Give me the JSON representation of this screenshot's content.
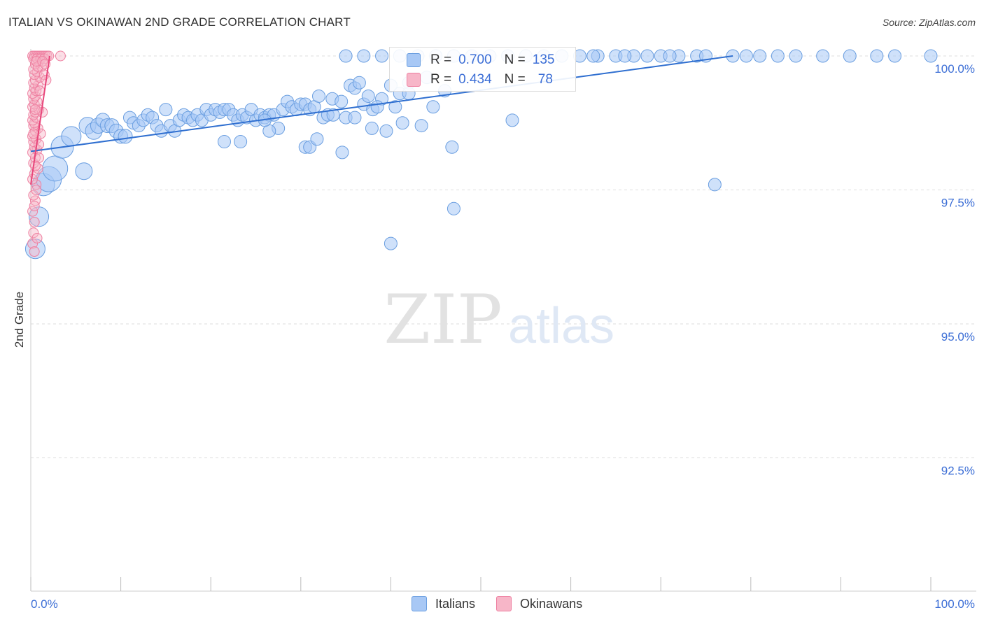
{
  "title": "ITALIAN VS OKINAWAN 2ND GRADE CORRELATION CHART",
  "source": "Source: ZipAtlas.com",
  "watermark": {
    "zip": "ZIP",
    "atlas": "atlas"
  },
  "colors": {
    "blue_fill": "#a8c8f5",
    "blue_stroke": "#6a9ee0",
    "blue_line": "#2f6fd0",
    "pink_fill": "#f7b6c8",
    "pink_stroke": "#ee7fa0",
    "pink_line": "#e8457a",
    "axis_text": "#3d6fd6",
    "grid": "#dddddd"
  },
  "legend": {
    "rows": [
      {
        "r_label": "R =",
        "r_value": "0.700",
        "n_label": "N =",
        "n_value": "135"
      },
      {
        "r_label": "R =",
        "r_value": "0.434",
        "n_label": "N =",
        "n_value": "78"
      }
    ]
  },
  "bottom_legend": {
    "italians": "Italians",
    "okinawans": "Okinawans"
  },
  "chart_data": {
    "type": "scatter",
    "title": "ITALIAN VS OKINAWAN 2ND GRADE CORRELATION CHART",
    "xlabel": "",
    "ylabel": "2nd Grade",
    "xlim": [
      0,
      100
    ],
    "ylim": [
      90.2,
      100.2
    ],
    "x_tick_labels": [
      "0.0%",
      "100.0%"
    ],
    "y_ticks": [
      92.5,
      95.0,
      97.5,
      100.0
    ],
    "y_tick_labels": [
      "92.5%",
      "95.0%",
      "97.5%",
      "100.0%"
    ],
    "series": [
      {
        "name": "Italians",
        "r": 0.7,
        "n": 135,
        "trend": {
          "x0": 0,
          "y0": 98.22,
          "x1": 78,
          "y1": 100.0
        },
        "points": [
          [
            0.5,
            96.4,
            14
          ],
          [
            0.9,
            97.0,
            14
          ],
          [
            1.4,
            97.6,
            16
          ],
          [
            2.0,
            97.7,
            18
          ],
          [
            2.7,
            97.9,
            18
          ],
          [
            3.5,
            98.3,
            16
          ],
          [
            4.5,
            98.5,
            14
          ],
          [
            5.9,
            97.85,
            12
          ],
          [
            6.3,
            98.7,
            12
          ],
          [
            7.0,
            98.6,
            12
          ],
          [
            7.5,
            98.7,
            11
          ],
          [
            8.0,
            98.8,
            10
          ],
          [
            8.5,
            98.7,
            10
          ],
          [
            9.0,
            98.7,
            10
          ],
          [
            9.5,
            98.6,
            10
          ],
          [
            10.0,
            98.5,
            10
          ],
          [
            10.5,
            98.5,
            10
          ],
          [
            11.0,
            98.85,
            9
          ],
          [
            11.4,
            98.75,
            9
          ],
          [
            12.0,
            98.7,
            9
          ],
          [
            12.5,
            98.8,
            9
          ],
          [
            13.0,
            98.9,
            9
          ],
          [
            13.5,
            98.85,
            9
          ],
          [
            14.0,
            98.7,
            9
          ],
          [
            14.5,
            98.6,
            9
          ],
          [
            15.0,
            99.0,
            9
          ],
          [
            15.5,
            98.7,
            9
          ],
          [
            16.0,
            98.6,
            9
          ],
          [
            16.5,
            98.8,
            9
          ],
          [
            17.0,
            98.9,
            9
          ],
          [
            17.5,
            98.85,
            9
          ],
          [
            18.0,
            98.8,
            9
          ],
          [
            18.5,
            98.9,
            9
          ],
          [
            19.0,
            98.8,
            9
          ],
          [
            19.5,
            99.0,
            9
          ],
          [
            20.0,
            98.9,
            9
          ],
          [
            20.5,
            99.0,
            9
          ],
          [
            21.0,
            98.95,
            9
          ],
          [
            21.5,
            99.0,
            9
          ],
          [
            22.0,
            99.0,
            9
          ],
          [
            22.5,
            98.9,
            9
          ],
          [
            23.0,
            98.8,
            9
          ],
          [
            23.5,
            98.9,
            9
          ],
          [
            24.0,
            98.85,
            9
          ],
          [
            24.5,
            99.0,
            9
          ],
          [
            25.0,
            98.8,
            9
          ],
          [
            25.5,
            98.9,
            9
          ],
          [
            26.0,
            98.85,
            9
          ],
          [
            26.5,
            98.9,
            9
          ],
          [
            27.0,
            98.9,
            9
          ],
          [
            27.5,
            98.65,
            9
          ],
          [
            28.0,
            99.0,
            9
          ],
          [
            28.5,
            99.15,
            9
          ],
          [
            29.0,
            99.05,
            9
          ],
          [
            29.5,
            99.0,
            9
          ],
          [
            30.0,
            99.1,
            9
          ],
          [
            30.5,
            99.1,
            9
          ],
          [
            31.0,
            99.0,
            9
          ],
          [
            31.5,
            99.05,
            9
          ],
          [
            32.0,
            99.25,
            9
          ],
          [
            32.5,
            98.85,
            9
          ],
          [
            33.0,
            98.9,
            9
          ],
          [
            33.5,
            99.2,
            9
          ],
          [
            34.5,
            99.15,
            9
          ],
          [
            35.0,
            98.85,
            9
          ],
          [
            35.5,
            99.45,
            9
          ],
          [
            36.0,
            99.4,
            9
          ],
          [
            36.5,
            99.5,
            9
          ],
          [
            37.0,
            99.1,
            9
          ],
          [
            37.5,
            99.25,
            9
          ],
          [
            38.0,
            99.0,
            9
          ],
          [
            39.0,
            99.2,
            9
          ],
          [
            40.0,
            99.45,
            9
          ],
          [
            41.0,
            99.3,
            9
          ],
          [
            42.0,
            99.5,
            9
          ],
          [
            44.0,
            99.6,
            9
          ],
          [
            46.0,
            99.35,
            9
          ],
          [
            26.5,
            98.6,
            9
          ],
          [
            30.5,
            98.3,
            9
          ],
          [
            31.0,
            98.3,
            9
          ],
          [
            31.8,
            98.45,
            9
          ],
          [
            34.6,
            98.2,
            9
          ],
          [
            21.5,
            98.4,
            9
          ],
          [
            23.3,
            98.4,
            9
          ],
          [
            26.0,
            98.8,
            9
          ],
          [
            37.9,
            98.65,
            9
          ],
          [
            39.5,
            98.6,
            9
          ],
          [
            41.3,
            98.75,
            9
          ],
          [
            43.4,
            98.7,
            9
          ],
          [
            46.8,
            98.3,
            9
          ],
          [
            47.0,
            97.15,
            9
          ],
          [
            53.5,
            98.8,
            9
          ],
          [
            40.0,
            96.5,
            9
          ],
          [
            76.0,
            97.6,
            9
          ],
          [
            33.6,
            98.9,
            9
          ],
          [
            36.0,
            98.85,
            9
          ],
          [
            38.5,
            99.05,
            9
          ],
          [
            40.5,
            99.05,
            9
          ],
          [
            42.0,
            99.3,
            9
          ],
          [
            44.7,
            99.05,
            9
          ],
          [
            35.0,
            100.0,
            9
          ],
          [
            37.0,
            100.0,
            9
          ],
          [
            39.0,
            100.0,
            9
          ],
          [
            41.0,
            100.0,
            9
          ],
          [
            43.0,
            100.0,
            9
          ],
          [
            45.0,
            100.0,
            9
          ],
          [
            47.0,
            100.0,
            9
          ],
          [
            49.0,
            100.0,
            9
          ],
          [
            51.0,
            100.0,
            9
          ],
          [
            53.0,
            100.0,
            9
          ],
          [
            55.0,
            100.0,
            9
          ],
          [
            57.0,
            100.0,
            9
          ],
          [
            59.0,
            100.0,
            9
          ],
          [
            61.0,
            100.0,
            9
          ],
          [
            63.0,
            100.0,
            9
          ],
          [
            65.0,
            100.0,
            9
          ],
          [
            67.0,
            100.0,
            9
          ],
          [
            70.0,
            100.0,
            9
          ],
          [
            72.0,
            100.0,
            9
          ],
          [
            74.0,
            100.0,
            9
          ],
          [
            78.0,
            100.0,
            9
          ],
          [
            81.0,
            100.0,
            9
          ],
          [
            83.0,
            100.0,
            9
          ],
          [
            85.0,
            100.0,
            9
          ],
          [
            88.0,
            100.0,
            9
          ],
          [
            91.0,
            100.0,
            9
          ],
          [
            94.0,
            100.0,
            9
          ],
          [
            96.0,
            100.0,
            9
          ],
          [
            100.0,
            100.0,
            9
          ],
          [
            62.5,
            100.0,
            9
          ],
          [
            66.0,
            100.0,
            9
          ],
          [
            68.5,
            100.0,
            9
          ],
          [
            71.0,
            100.0,
            9
          ],
          [
            75.0,
            100.0,
            9
          ],
          [
            79.5,
            100.0,
            9
          ]
        ]
      },
      {
        "name": "Okinawans",
        "r": 0.434,
        "n": 78,
        "trend": {
          "x0": 0,
          "y0": 97.6,
          "x1": 2.1,
          "y1": 100.0
        },
        "points": [
          [
            0.2,
            96.5
          ],
          [
            0.3,
            96.7
          ],
          [
            0.4,
            96.9
          ],
          [
            0.2,
            97.1
          ],
          [
            0.5,
            97.3
          ],
          [
            0.3,
            97.4
          ],
          [
            0.6,
            97.6
          ],
          [
            0.2,
            97.7
          ],
          [
            0.4,
            97.8
          ],
          [
            0.8,
            97.9
          ],
          [
            0.3,
            98.0
          ],
          [
            0.5,
            98.1
          ],
          [
            0.2,
            98.2
          ],
          [
            0.7,
            98.25
          ],
          [
            0.4,
            98.3
          ],
          [
            0.3,
            98.4
          ],
          [
            0.6,
            98.45
          ],
          [
            0.2,
            98.5
          ],
          [
            0.5,
            98.6
          ],
          [
            0.8,
            98.65
          ],
          [
            0.3,
            98.7
          ],
          [
            0.4,
            98.75
          ],
          [
            0.2,
            98.8
          ],
          [
            0.6,
            98.85
          ],
          [
            0.3,
            98.9
          ],
          [
            0.5,
            98.95
          ],
          [
            0.9,
            99.0
          ],
          [
            0.2,
            99.05
          ],
          [
            0.4,
            99.1
          ],
          [
            0.7,
            99.15
          ],
          [
            0.3,
            99.2
          ],
          [
            0.5,
            99.25
          ],
          [
            0.2,
            99.3
          ],
          [
            0.6,
            99.35
          ],
          [
            0.4,
            99.4
          ],
          [
            0.8,
            99.45
          ],
          [
            0.3,
            99.5
          ],
          [
            0.5,
            99.55
          ],
          [
            1.0,
            99.6
          ],
          [
            0.4,
            99.65
          ],
          [
            0.7,
            99.7
          ],
          [
            0.3,
            99.75
          ],
          [
            1.2,
            99.8
          ],
          [
            0.5,
            99.85
          ],
          [
            0.9,
            99.9
          ],
          [
            0.2,
            100.0
          ],
          [
            0.4,
            100.0
          ],
          [
            0.6,
            100.0
          ],
          [
            0.8,
            100.0
          ],
          [
            1.0,
            100.0
          ],
          [
            1.2,
            100.0
          ],
          [
            1.4,
            100.0
          ],
          [
            1.6,
            100.0
          ],
          [
            1.8,
            100.0
          ],
          [
            0.3,
            99.95
          ],
          [
            0.7,
            99.95
          ],
          [
            1.1,
            99.95
          ],
          [
            1.5,
            99.95
          ],
          [
            2.0,
            100.0
          ],
          [
            3.3,
            100.0
          ],
          [
            0.9,
            98.1
          ],
          [
            1.1,
            98.55
          ],
          [
            1.3,
            98.95
          ],
          [
            1.5,
            99.65
          ],
          [
            1.7,
            99.55
          ],
          [
            0.6,
            97.5
          ],
          [
            0.4,
            97.2
          ],
          [
            0.7,
            96.6
          ],
          [
            0.5,
            97.95
          ],
          [
            0.9,
            98.35
          ],
          [
            1.0,
            99.35
          ],
          [
            0.8,
            99.8
          ],
          [
            0.3,
            98.55
          ],
          [
            0.5,
            99.0
          ],
          [
            0.6,
            99.9
          ],
          [
            1.3,
            99.9
          ],
          [
            1.6,
            99.85
          ],
          [
            0.4,
            96.35
          ]
        ]
      }
    ]
  }
}
